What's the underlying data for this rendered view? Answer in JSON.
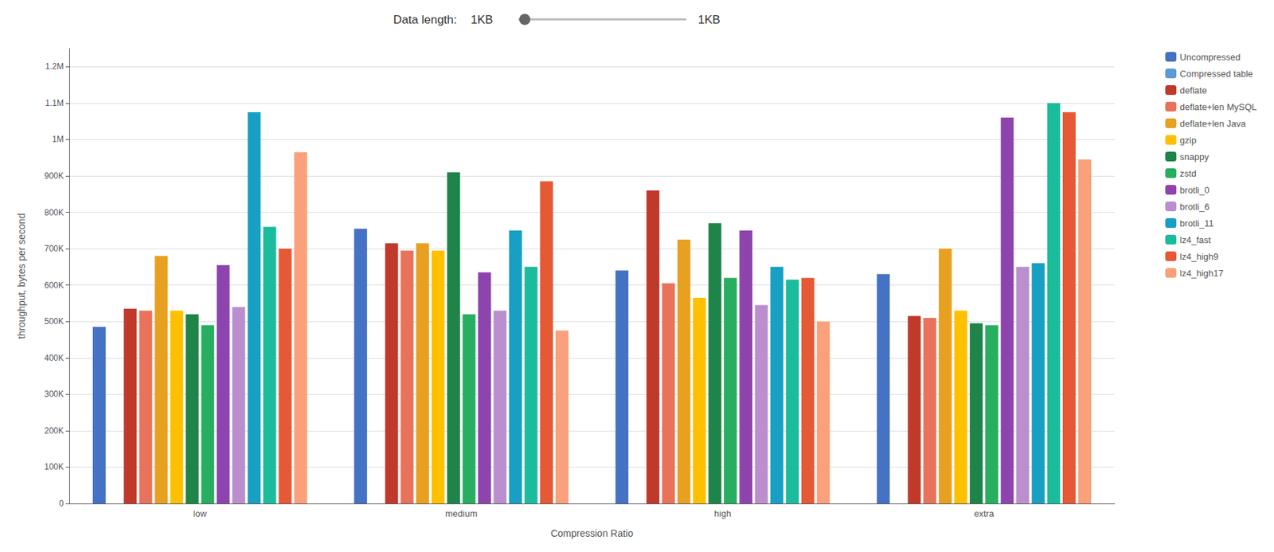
{
  "chart_data": {
    "type": "bar",
    "annotations": [
      "Data length:",
      "1KB",
      "1KB"
    ],
    "xlabel": "Compression Ratio",
    "ylabel": "throughput, bytes per second",
    "categories": [
      "low",
      "medium",
      "high",
      "extra"
    ],
    "series": [
      {
        "name": "Uncompressed",
        "color": "#4472C4",
        "values": [
          485000,
          755000,
          640000,
          630000
        ]
      },
      {
        "name": "Compressed table",
        "color": "#5B9BD5",
        "values": [
          0,
          0,
          0,
          0
        ]
      },
      {
        "name": "deflate",
        "color": "#C0392B",
        "values": [
          535000,
          715000,
          860000,
          515000
        ]
      },
      {
        "name": "deflate+len MySQL",
        "color": "#E8735A",
        "values": [
          530000,
          695000,
          605000,
          510000
        ]
      },
      {
        "name": "deflate+len Java",
        "color": "#E8A020",
        "values": [
          680000,
          715000,
          725000,
          700000
        ]
      },
      {
        "name": "gzip",
        "color": "#FFC000",
        "values": [
          530000,
          695000,
          565000,
          530000
        ]
      },
      {
        "name": "snappy",
        "color": "#1E8449",
        "values": [
          520000,
          910000,
          770000,
          495000
        ]
      },
      {
        "name": "zstd",
        "color": "#27AE60",
        "values": [
          490000,
          520000,
          620000,
          490000
        ]
      },
      {
        "name": "brotli_0",
        "color": "#8E44AD",
        "values": [
          655000,
          635000,
          750000,
          1060000
        ]
      },
      {
        "name": "brotli_6",
        "color": "#BB8FCE",
        "values": [
          540000,
          530000,
          545000,
          650000
        ]
      },
      {
        "name": "brotli_11",
        "color": "#17A0C3",
        "values": [
          1075000,
          750000,
          650000,
          660000
        ]
      },
      {
        "name": "lz4_fast",
        "color": "#1ABC9C",
        "values": [
          760000,
          650000,
          615000,
          1100000
        ]
      },
      {
        "name": "lz4_high9",
        "color": "#E55934",
        "values": [
          700000,
          885000,
          620000,
          1075000
        ]
      },
      {
        "name": "lz4_high17",
        "color": "#FAA07A",
        "values": [
          965000,
          475000,
          500000,
          945000
        ]
      }
    ],
    "ylim": [
      0,
      1250000
    ],
    "yticks": [
      0,
      {
        "value": 100000,
        "label": "100K"
      },
      {
        "value": 200000,
        "label": "200K"
      },
      {
        "value": 300000,
        "label": "300K"
      },
      {
        "value": 400000,
        "label": "400K"
      },
      {
        "value": 500000,
        "label": "500K"
      },
      {
        "value": 600000,
        "label": "600K"
      },
      {
        "value": 700000,
        "label": "700K"
      },
      {
        "value": 800000,
        "label": "800K"
      },
      {
        "value": 900000,
        "label": "900K"
      },
      {
        "value": 1000000,
        "label": "1M"
      },
      {
        "value": 1100000,
        "label": "1.1M"
      },
      {
        "value": 1200000,
        "label": "1.2M"
      }
    ],
    "grid": true,
    "legend": "right"
  }
}
